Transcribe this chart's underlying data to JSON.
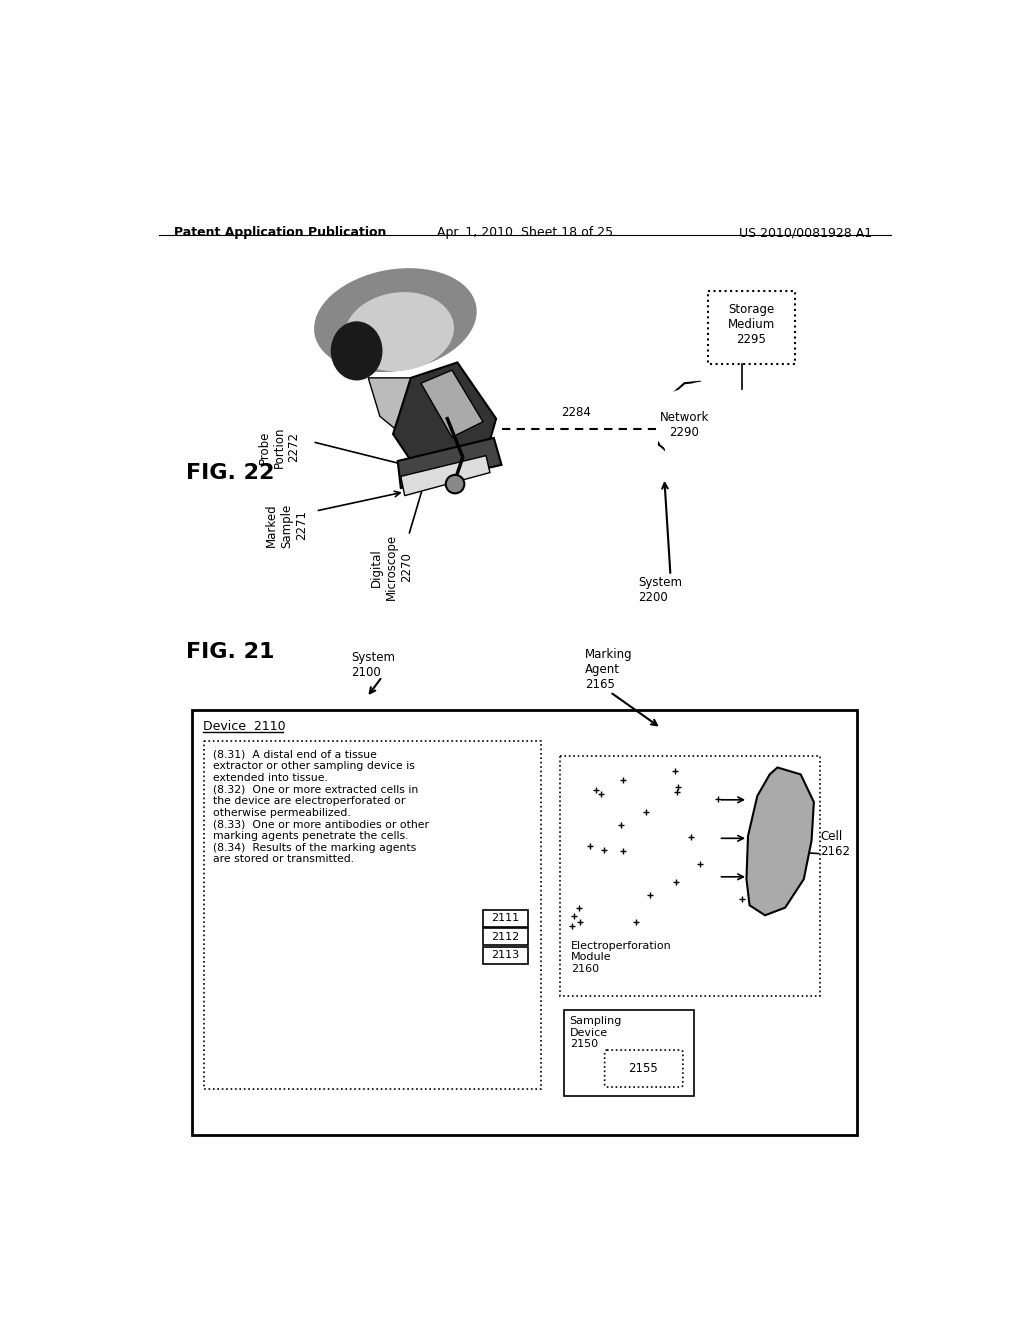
{
  "page_header_left": "Patent Application Publication",
  "page_header_center": "Apr. 1, 2010  Sheet 18 of 25",
  "page_header_right": "US 2010/0081928 A1",
  "fig22_label": "FIG. 22",
  "fig21_label": "FIG. 21",
  "fig22_labels": {
    "probe_portion": "Probe\nPortion\n2272",
    "marked_sample": "Marked\nSample\n2271",
    "digital_microscope": "Digital\nMicroscope\n2270",
    "connection_label": "2284",
    "network": "Network\n2290",
    "storage_medium": "Storage\nMedium\n2295",
    "system": "System\n2200"
  },
  "fig21_labels": {
    "system": "System\n2100",
    "device": "Device  2110",
    "marking_agent": "Marking\nAgent\n2165",
    "cell": "Cell\n2162",
    "electroperforation": "Electroperforation\nModule\n2160",
    "sampling_device": "Sampling\nDevice\n2150",
    "sampling_device_num": "2155",
    "device_text": "(8.31)  A distal end of a tissue\nextractor or other sampling device is\nextended into tissue.\n(8.32)  One or more extracted cells in\nthe device are electroperforated or\notherwise permeabilized.\n(8.33)  One or more antibodies or other\nmarking agents penetrate the cells.\n(8.34)  Results of the marking agents\nare stored or transmitted.",
    "label_2111": "2111",
    "label_2112": "2112",
    "label_2113": "2113"
  },
  "bg_color": "#ffffff",
  "text_color": "#000000",
  "line_color": "#000000"
}
